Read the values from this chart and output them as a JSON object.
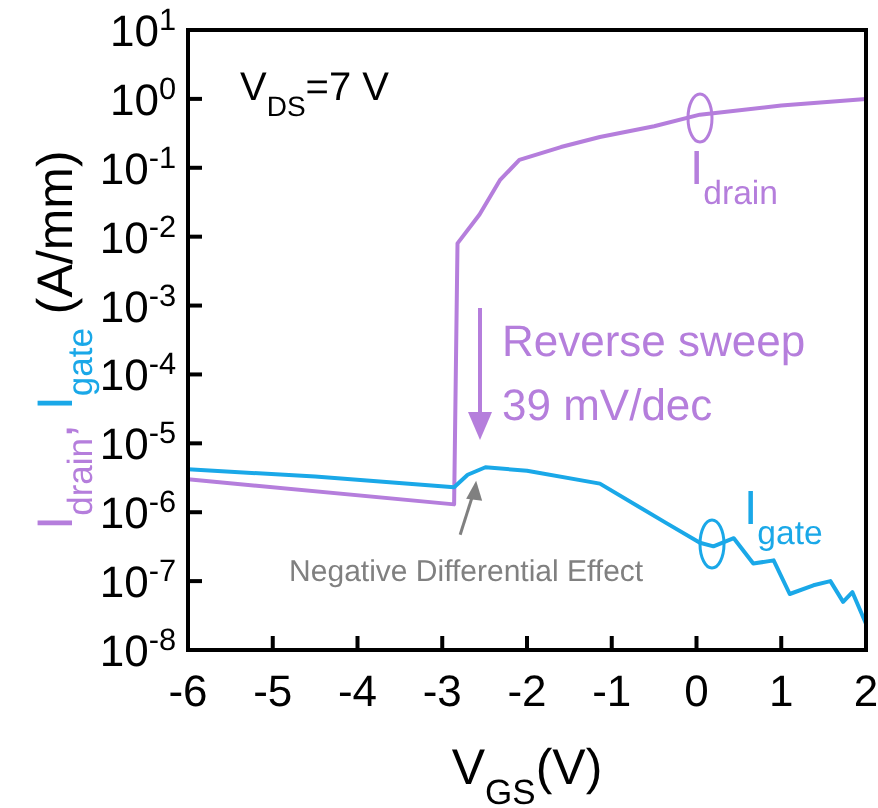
{
  "chart_data": {
    "type": "line",
    "xlabel": "V$_{GS}$(V)",
    "ylabel": "I$_{drain}$, I$_{gate}$ (A/mm)",
    "log": "y",
    "xlim": [
      -6,
      2
    ],
    "ylim": [
      1e-08,
      10
    ],
    "xticks": [
      -6,
      -5,
      -4,
      -3,
      -2,
      -1,
      0,
      1,
      2
    ],
    "yticks": [
      {
        "value": 1e-08,
        "label": "10$^{-8}$"
      },
      {
        "value": 1e-07,
        "label": "10$^{-7}$"
      },
      {
        "value": 1e-06,
        "label": "10$^{-6}$"
      },
      {
        "value": 1e-05,
        "label": "10$^{-5}$"
      },
      {
        "value": 0.0001,
        "label": "10$^{-4}$"
      },
      {
        "value": 0.001,
        "label": "10$^{-3}$"
      },
      {
        "value": 0.01,
        "label": "10$^{-2}$"
      },
      {
        "value": 0.1,
        "label": "10$^{-1}$"
      },
      {
        "value": 1,
        "label": "10$^{0}$"
      },
      {
        "value": 10,
        "label": "10$^{1}$"
      }
    ],
    "grid": false,
    "marker": "none",
    "line_style": "solid",
    "series": [
      {
        "name": "I$_{drain}$",
        "color": "#b57edc",
        "x": [
          -6,
          -2.86,
          -2.82,
          -2.56,
          -2.32,
          -2.09,
          -1.6,
          -1.14,
          -0.5,
          0.04,
          1,
          2
        ],
        "values": [
          3e-06,
          1.3e-06,
          0.008,
          0.021,
          0.066,
          0.13,
          0.2,
          0.28,
          0.4,
          0.59,
          0.8,
          1.0
        ]
      },
      {
        "name": "I$_{gate}$",
        "color": "#1aa8e8",
        "x": [
          -6,
          -4.5,
          -2.86,
          -2.7,
          -2.49,
          -2,
          -1.14,
          -0.36,
          0.04,
          0.2,
          0.44,
          0.67,
          0.91,
          1.1,
          1.38,
          1.58,
          1.73,
          1.84,
          2
        ],
        "values": [
          4.2e-06,
          3.3e-06,
          2.3e-06,
          3.5e-06,
          4.5e-06,
          4e-06,
          2.6e-06,
          7e-07,
          3.6e-07,
          3.2e-07,
          4.2e-07,
          1.8e-07,
          2e-07,
          6.5e-08,
          8.7e-08,
          1e-07,
          5e-08,
          6.9e-08,
          2.4e-08
        ]
      }
    ],
    "annotations": [
      "V$_{DS}$=7 V",
      "Reverse sweep",
      "39 mV/dec",
      {
        "text": "Negative Differential Effect",
        "x": -2.6,
        "y": 4e-06
      }
    ]
  }
}
